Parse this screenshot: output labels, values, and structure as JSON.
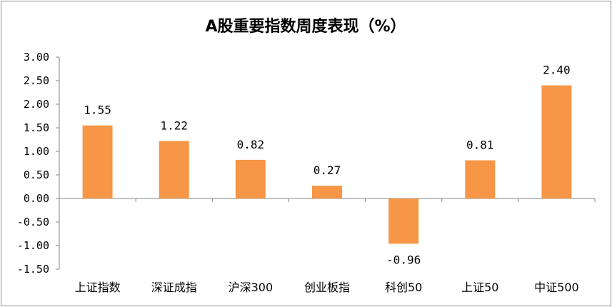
{
  "chart_data": {
    "type": "bar",
    "title": "A股重要指数周度表现（%）",
    "categories": [
      "上证指数",
      "深证成指",
      "沪深300",
      "创业板指",
      "科创50",
      "上证50",
      "中证500"
    ],
    "values": [
      1.55,
      1.22,
      0.82,
      0.27,
      -0.96,
      0.81,
      2.4
    ],
    "data_labels": [
      "1.55",
      "1.22",
      "0.82",
      "0.27",
      "-0.96",
      "0.81",
      "2.40"
    ],
    "ylim": [
      -1.5,
      3.0
    ],
    "yticks": [
      "3.00",
      "2.50",
      "2.00",
      "1.50",
      "1.00",
      "0.50",
      "0.00",
      "-0.50",
      "-1.00",
      "-1.50"
    ],
    "bar_color": "#F79646",
    "grid": false,
    "legend": "none",
    "xlabel": "",
    "ylabel": ""
  }
}
